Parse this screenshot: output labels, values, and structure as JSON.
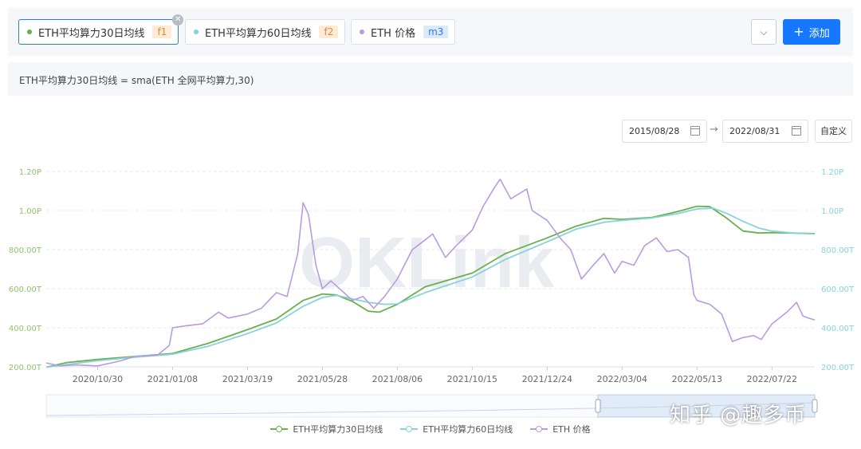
{
  "series_chips": [
    {
      "label": "ETH平均算力30日均线",
      "tag": "f1",
      "color": "#6ab04c",
      "tag_bg": "#fdebd6",
      "tag_color": "#e8883a",
      "active": true
    },
    {
      "label": "ETH平均算力60日均线",
      "tag": "f2",
      "color": "#7fd1d8",
      "tag_bg": "#fdebd6",
      "tag_color": "#e8883a",
      "active": false
    },
    {
      "label": "ETH 价格",
      "tag": "m3",
      "color": "#b99be0",
      "tag_bg": "#dbe9fb",
      "tag_color": "#2d7be5",
      "active": false
    }
  ],
  "toolbar": {
    "dropdown_icon": "chevron-down-icon",
    "add_label": "添加",
    "add_icon": "plus-icon",
    "close_icon": "close-icon"
  },
  "formula": "ETH平均算力30日均线 = sma(ETH 全网平均算力,30)",
  "date_range": {
    "start": "2015/08/28",
    "end": "2022/08/31",
    "arrow": "→",
    "custom_label": "自定义",
    "calendar_icon": "calendar-icon"
  },
  "watermark_text": "OKLink",
  "corner_watermark": "知乎 @趣多币",
  "colors": {
    "f1": "#6ab04c",
    "f2": "#86d3dc",
    "m3": "#b99be0",
    "accent": "#1677ff"
  },
  "chart_data": {
    "type": "line",
    "x_ticks": [
      "2020/10/30",
      "2021/01/08",
      "2021/03/19",
      "2021/05/28",
      "2021/08/06",
      "2021/10/15",
      "2021/12/24",
      "2022/03/04",
      "2022/05/13",
      "2022/07/22"
    ],
    "x_range": [
      "2020/09/12",
      "2022/08/31"
    ],
    "y_left": {
      "ticks": [
        "200.00T",
        "400.00T",
        "600.00T",
        "800.00T",
        "1.00P",
        "1.20P"
      ],
      "range": [
        200,
        1200
      ],
      "unit": "T"
    },
    "y_right": {
      "ticks": [
        "200.00T",
        "400.00T",
        "600.00T",
        "800.00T",
        "1.00P",
        "1.20P"
      ],
      "range": [
        200,
        1200
      ],
      "unit": "T"
    },
    "grid": true,
    "legend_position": "bottom",
    "series": [
      {
        "name": "ETH平均算力30日均线",
        "axis": "left",
        "color": "#6ab04c",
        "points": [
          [
            "2020/09/12",
            198
          ],
          [
            "2020/10/01",
            222
          ],
          [
            "2020/10/30",
            238
          ],
          [
            "2020/12/01",
            252
          ],
          [
            "2021/01/08",
            268
          ],
          [
            "2021/02/10",
            320
          ],
          [
            "2021/03/19",
            390
          ],
          [
            "2021/04/15",
            445
          ],
          [
            "2021/05/10",
            540
          ],
          [
            "2021/05/28",
            573
          ],
          [
            "2021/06/10",
            568
          ],
          [
            "2021/06/25",
            535
          ],
          [
            "2021/07/10",
            485
          ],
          [
            "2021/07/20",
            480
          ],
          [
            "2021/08/06",
            520
          ],
          [
            "2021/09/01",
            610
          ],
          [
            "2021/10/15",
            680
          ],
          [
            "2021/11/15",
            780
          ],
          [
            "2021/12/24",
            860
          ],
          [
            "2022/01/20",
            920
          ],
          [
            "2022/02/15",
            960
          ],
          [
            "2022/03/04",
            955
          ],
          [
            "2022/04/01",
            965
          ],
          [
            "2022/04/25",
            995
          ],
          [
            "2022/05/13",
            1022
          ],
          [
            "2022/05/25",
            1020
          ],
          [
            "2022/06/10",
            960
          ],
          [
            "2022/06/25",
            895
          ],
          [
            "2022/07/10",
            885
          ],
          [
            "2022/07/22",
            887
          ],
          [
            "2022/08/10",
            885
          ],
          [
            "2022/08/31",
            882
          ]
        ]
      },
      {
        "name": "ETH平均算力60日均线",
        "axis": "left",
        "color": "#86d3dc",
        "points": [
          [
            "2020/09/12",
            198
          ],
          [
            "2020/10/01",
            212
          ],
          [
            "2020/10/30",
            232
          ],
          [
            "2020/12/01",
            248
          ],
          [
            "2021/01/08",
            265
          ],
          [
            "2021/02/10",
            305
          ],
          [
            "2021/03/19",
            370
          ],
          [
            "2021/04/15",
            425
          ],
          [
            "2021/05/10",
            510
          ],
          [
            "2021/05/28",
            555
          ],
          [
            "2021/06/10",
            566
          ],
          [
            "2021/06/25",
            548
          ],
          [
            "2021/07/10",
            530
          ],
          [
            "2021/07/25",
            520
          ],
          [
            "2021/08/06",
            522
          ],
          [
            "2021/09/01",
            580
          ],
          [
            "2021/10/15",
            660
          ],
          [
            "2021/11/15",
            750
          ],
          [
            "2021/12/24",
            840
          ],
          [
            "2022/01/20",
            905
          ],
          [
            "2022/02/15",
            940
          ],
          [
            "2022/03/04",
            950
          ],
          [
            "2022/04/01",
            962
          ],
          [
            "2022/04/25",
            985
          ],
          [
            "2022/05/13",
            1008
          ],
          [
            "2022/05/28",
            1012
          ],
          [
            "2022/06/10",
            985
          ],
          [
            "2022/06/25",
            945
          ],
          [
            "2022/07/10",
            910
          ],
          [
            "2022/07/22",
            895
          ],
          [
            "2022/08/10",
            885
          ],
          [
            "2022/08/31",
            880
          ]
        ]
      },
      {
        "name": "ETH 价格",
        "axis": "right",
        "color": "#b99be0",
        "points": [
          [
            "2020/09/12",
            220
          ],
          [
            "2020/09/25",
            205
          ],
          [
            "2020/10/10",
            210
          ],
          [
            "2020/10/30",
            205
          ],
          [
            "2020/11/20",
            230
          ],
          [
            "2020/12/05",
            255
          ],
          [
            "2020/12/25",
            260
          ],
          [
            "2021/01/05",
            310
          ],
          [
            "2021/01/08",
            400
          ],
          [
            "2021/01/20",
            410
          ],
          [
            "2021/02/05",
            420
          ],
          [
            "2021/02/20",
            480
          ],
          [
            "2021/03/01",
            450
          ],
          [
            "2021/03/19",
            470
          ],
          [
            "2021/04/01",
            500
          ],
          [
            "2021/04/15",
            580
          ],
          [
            "2021/04/25",
            560
          ],
          [
            "2021/05/05",
            780
          ],
          [
            "2021/05/10",
            1040
          ],
          [
            "2021/05/15",
            980
          ],
          [
            "2021/05/22",
            720
          ],
          [
            "2021/05/28",
            600
          ],
          [
            "2021/06/05",
            640
          ],
          [
            "2021/06/15",
            590
          ],
          [
            "2021/06/25",
            540
          ],
          [
            "2021/07/05",
            560
          ],
          [
            "2021/07/15",
            500
          ],
          [
            "2021/07/25",
            560
          ],
          [
            "2021/08/06",
            650
          ],
          [
            "2021/08/20",
            800
          ],
          [
            "2021/09/01",
            850
          ],
          [
            "2021/09/08",
            880
          ],
          [
            "2021/09/20",
            760
          ],
          [
            "2021/09/30",
            820
          ],
          [
            "2021/10/15",
            900
          ],
          [
            "2021/10/25",
            1020
          ],
          [
            "2021/11/05",
            1120
          ],
          [
            "2021/11/10",
            1160
          ],
          [
            "2021/11/20",
            1060
          ],
          [
            "2021/12/05",
            1110
          ],
          [
            "2021/12/10",
            1000
          ],
          [
            "2021/12/24",
            950
          ],
          [
            "2022/01/05",
            860
          ],
          [
            "2022/01/15",
            800
          ],
          [
            "2022/01/25",
            650
          ],
          [
            "2022/02/05",
            720
          ],
          [
            "2022/02/15",
            780
          ],
          [
            "2022/02/25",
            680
          ],
          [
            "2022/03/04",
            740
          ],
          [
            "2022/03/15",
            720
          ],
          [
            "2022/03/25",
            820
          ],
          [
            "2022/04/05",
            860
          ],
          [
            "2022/04/15",
            790
          ],
          [
            "2022/04/25",
            800
          ],
          [
            "2022/05/05",
            760
          ],
          [
            "2022/05/10",
            570
          ],
          [
            "2022/05/13",
            540
          ],
          [
            "2022/05/25",
            520
          ],
          [
            "2022/06/05",
            470
          ],
          [
            "2022/06/15",
            330
          ],
          [
            "2022/06/25",
            350
          ],
          [
            "2022/07/05",
            360
          ],
          [
            "2022/07/12",
            340
          ],
          [
            "2022/07/22",
            420
          ],
          [
            "2022/08/05",
            480
          ],
          [
            "2022/08/14",
            530
          ],
          [
            "2022/08/20",
            460
          ],
          [
            "2022/08/25",
            450
          ],
          [
            "2022/08/31",
            440
          ]
        ]
      }
    ]
  },
  "legend": [
    {
      "label": "ETH平均算力30日均线",
      "color": "#6ab04c"
    },
    {
      "label": "ETH平均算力60日均线",
      "color": "#86d3dc"
    },
    {
      "label": "ETH 价格",
      "color": "#b99be0"
    }
  ]
}
